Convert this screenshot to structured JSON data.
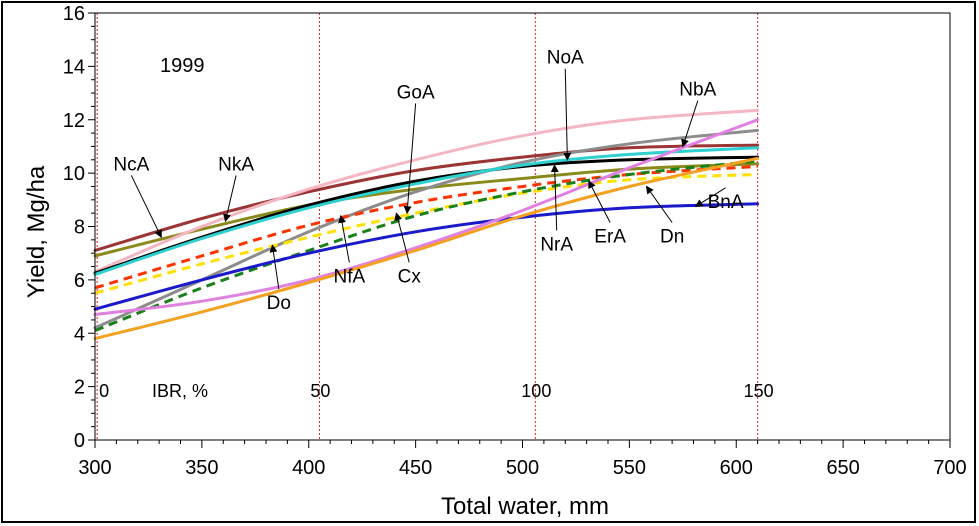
{
  "chart_data": {
    "type": "line",
    "title": "",
    "year_label": "1999",
    "xlabel": "Total water, mm",
    "ylabel": "Yield, Mg/ha",
    "xlim": [
      300,
      700
    ],
    "ylim": [
      0,
      16
    ],
    "xticks": [
      300,
      350,
      400,
      450,
      500,
      550,
      600,
      650,
      700
    ],
    "yticks": [
      0,
      2,
      4,
      6,
      8,
      10,
      12,
      14,
      16
    ],
    "grid": false,
    "ibr_axis_label": "IBR, %",
    "ibr_markers": [
      {
        "label": "0",
        "x": 301
      },
      {
        "label": "50",
        "x": 405
      },
      {
        "label": "100",
        "x": 506
      },
      {
        "label": "150",
        "x": 610
      }
    ],
    "series": [
      {
        "name": "NcA",
        "color": "#9b3535",
        "dash": false,
        "x": [
          300,
          350,
          400,
          450,
          500,
          550,
          610
        ],
        "y": [
          7.1,
          8.3,
          9.3,
          10.1,
          10.6,
          10.95,
          11.05
        ]
      },
      {
        "name": "NkA",
        "color": "#8a8a1a",
        "dash": false,
        "x": [
          300,
          350,
          400,
          450,
          500,
          550,
          610
        ],
        "y": [
          6.9,
          7.9,
          8.8,
          9.4,
          9.8,
          10.15,
          10.35
        ]
      },
      {
        "name": "NoA",
        "color": "#f4b6c2",
        "dash": false,
        "x": [
          300,
          350,
          400,
          450,
          500,
          550,
          610
        ],
        "y": [
          6.3,
          8.0,
          9.4,
          10.5,
          11.4,
          12.0,
          12.35
        ]
      },
      {
        "name": "NbA",
        "color": "#8c8c8c",
        "dash": false,
        "x": [
          300,
          350,
          400,
          450,
          500,
          550,
          610
        ],
        "y": [
          4.2,
          6.0,
          7.8,
          9.3,
          10.4,
          11.1,
          11.6
        ]
      },
      {
        "name": "GoA",
        "color": "#000000",
        "dash": false,
        "x": [
          300,
          350,
          400,
          450,
          500,
          550,
          610
        ],
        "y": [
          6.25,
          7.6,
          8.8,
          9.7,
          10.25,
          10.5,
          10.6
        ]
      },
      {
        "name": "",
        "color": "#2ed0d0",
        "dash": false,
        "x": [
          300,
          350,
          400,
          450,
          500,
          550,
          610
        ],
        "y": [
          6.2,
          7.55,
          8.7,
          9.6,
          10.3,
          10.7,
          10.95
        ]
      },
      {
        "name": "NrA",
        "color": "#ff3300",
        "dash": true,
        "x": [
          300,
          350,
          400,
          450,
          500,
          550,
          610
        ],
        "y": [
          5.7,
          6.9,
          8.05,
          8.9,
          9.5,
          9.95,
          10.25
        ]
      },
      {
        "name": "Do",
        "color": "#ffe000",
        "dash": true,
        "x": [
          300,
          350,
          400,
          450,
          500,
          550,
          610
        ],
        "y": [
          5.5,
          6.6,
          7.6,
          8.5,
          9.25,
          9.75,
          9.95
        ]
      },
      {
        "name": "Cx",
        "color": "#1a801a",
        "dash": true,
        "x": [
          300,
          350,
          400,
          450,
          500,
          550,
          610
        ],
        "y": [
          4.1,
          5.7,
          7.1,
          8.4,
          9.3,
          9.95,
          10.45
        ]
      },
      {
        "name": "BnA",
        "color": "#1a1acc",
        "dash": false,
        "x": [
          300,
          350,
          400,
          450,
          500,
          550,
          610
        ],
        "y": [
          4.9,
          6.0,
          7.0,
          7.8,
          8.35,
          8.7,
          8.85
        ]
      },
      {
        "name": "NfA",
        "color": "#e080e0",
        "dash": false,
        "x": [
          300,
          350,
          400,
          450,
          500,
          550,
          610
        ],
        "y": [
          4.7,
          5.2,
          6.0,
          7.2,
          8.6,
          10.2,
          12.0
        ]
      },
      {
        "name": "Dn",
        "color": "#f4a020",
        "dash": false,
        "x": [
          300,
          350,
          400,
          450,
          500,
          550,
          610
        ],
        "y": [
          3.8,
          4.8,
          5.9,
          7.1,
          8.4,
          9.5,
          10.55
        ]
      }
    ],
    "annotations": [
      {
        "text": "NcA",
        "text_x": 317,
        "text_y": 10.1,
        "target_x": 331,
        "target_y": 7.6
      },
      {
        "text": "NkA",
        "text_x": 366,
        "text_y": 10.1,
        "target_x": 361,
        "target_y": 8.2
      },
      {
        "text": "GoA",
        "text_x": 450,
        "text_y": 12.8,
        "target_x": 446,
        "target_y": 8.5
      },
      {
        "text": "NoA",
        "text_x": 520,
        "text_y": 14.1,
        "target_x": 521,
        "target_y": 10.5
      },
      {
        "text": "NbA",
        "text_x": 582,
        "text_y": 12.9,
        "target_x": 575,
        "target_y": 11.0
      },
      {
        "text": "Do",
        "text_x": 386,
        "text_y": 4.9,
        "target_x": 383,
        "target_y": 7.3
      },
      {
        "text": "NfA",
        "text_x": 419,
        "text_y": 5.9,
        "target_x": 415,
        "target_y": 8.4
      },
      {
        "text": "Cx",
        "text_x": 447,
        "text_y": 5.9,
        "target_x": 441,
        "target_y": 8.5
      },
      {
        "text": "NrA",
        "text_x": 516,
        "text_y": 7.1,
        "target_x": 515,
        "target_y": 10.3
      },
      {
        "text": "ErA",
        "text_x": 541,
        "text_y": 7.4,
        "target_x": 531,
        "target_y": 9.7
      },
      {
        "text": "Dn",
        "text_x": 570,
        "text_y": 7.4,
        "target_x": 558,
        "target_y": 9.5
      },
      {
        "text": "BnA",
        "text_x": 595,
        "text_y": 8.7,
        "target_x": 581,
        "target_y": 8.75
      }
    ]
  }
}
